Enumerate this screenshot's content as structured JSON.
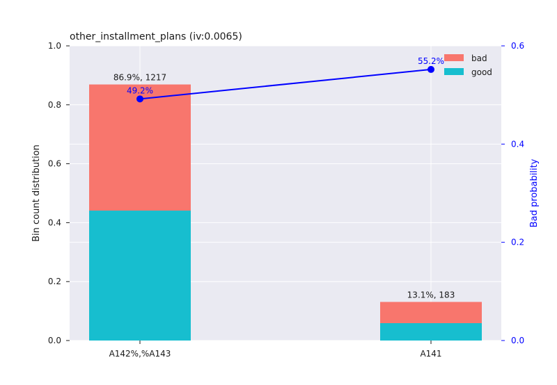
{
  "chart_data": {
    "type": "bar",
    "title": "other_installment_plans  (iv:0.0065)",
    "xlabel": "",
    "ylabel": "Bin count distribution",
    "y2label": "Bad probability",
    "categories": [
      "A142%,%A143",
      "A141"
    ],
    "ylim": [
      0,
      1.0
    ],
    "y2lim": [
      0,
      0.6
    ],
    "yticks": [
      "0.0",
      "0.2",
      "0.4",
      "0.6",
      "0.8",
      "1.0"
    ],
    "y2ticks": [
      "0.0",
      "0.2",
      "0.4",
      "0.6"
    ],
    "stacked": true,
    "series": [
      {
        "name": "good",
        "values": [
          0.441,
          0.059
        ],
        "color": "#17becf"
      },
      {
        "name": "bad",
        "values": [
          0.428,
          0.072
        ],
        "color": "#f8766d"
      }
    ],
    "bar_labels": [
      "86.9%, 1217",
      "13.1%, 183"
    ],
    "line": {
      "name": "bad probability",
      "axis": "right",
      "values": [
        0.492,
        0.552
      ],
      "labels": [
        "49.2%",
        "55.2%"
      ],
      "color": "#0000ff"
    },
    "legend": {
      "position": "top-right",
      "entries": [
        "bad",
        "good"
      ]
    },
    "grid": true,
    "background": "#eaeaf2"
  }
}
